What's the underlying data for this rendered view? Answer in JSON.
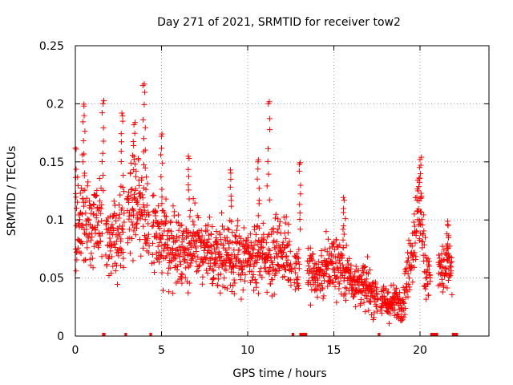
{
  "chart_data": {
    "type": "scatter",
    "title": "Day 271 of 2021, SRMTID for receiver tow2",
    "xlabel": "GPS time / hours",
    "ylabel": "SRMTID / TECUs",
    "xlim": [
      0,
      24
    ],
    "ylim": [
      0,
      0.25
    ],
    "x_ticks": [
      0,
      5,
      10,
      15,
      20
    ],
    "y_ticks": [
      0,
      0.05,
      0.1,
      0.15,
      0.2,
      0.25
    ],
    "x_tick_labels": [
      "0",
      "5",
      "10",
      "15",
      "20"
    ],
    "y_tick_labels": [
      "0",
      "0.05",
      "0.1",
      "0.15",
      "0.2",
      "0.25"
    ],
    "grid": true,
    "marker": "+",
    "series": [
      {
        "name": "SRMTID",
        "color": "#ff0000",
        "trend": [
          {
            "x": 0.0,
            "y": 0.09
          },
          {
            "x": 0.5,
            "y": 0.11
          },
          {
            "x": 1.0,
            "y": 0.1
          },
          {
            "x": 1.5,
            "y": 0.09
          },
          {
            "x": 2.0,
            "y": 0.08
          },
          {
            "x": 2.5,
            "y": 0.09
          },
          {
            "x": 3.0,
            "y": 0.11
          },
          {
            "x": 3.5,
            "y": 0.12
          },
          {
            "x": 4.0,
            "y": 0.11
          },
          {
            "x": 4.5,
            "y": 0.09
          },
          {
            "x": 5.0,
            "y": 0.08
          },
          {
            "x": 6.0,
            "y": 0.075
          },
          {
            "x": 7.0,
            "y": 0.075
          },
          {
            "x": 8.0,
            "y": 0.07
          },
          {
            "x": 9.0,
            "y": 0.07
          },
          {
            "x": 10.0,
            "y": 0.065
          },
          {
            "x": 11.0,
            "y": 0.07
          },
          {
            "x": 12.0,
            "y": 0.075
          },
          {
            "x": 12.8,
            "y": 0.06
          },
          {
            "x": 13.5,
            "y": 0.06
          },
          {
            "x": 14.0,
            "y": 0.05
          },
          {
            "x": 15.0,
            "y": 0.065
          },
          {
            "x": 15.5,
            "y": 0.06
          },
          {
            "x": 16.0,
            "y": 0.05
          },
          {
            "x": 17.0,
            "y": 0.04
          },
          {
            "x": 17.5,
            "y": 0.035
          },
          {
            "x": 18.0,
            "y": 0.028
          },
          {
            "x": 18.5,
            "y": 0.028
          },
          {
            "x": 19.0,
            "y": 0.03
          },
          {
            "x": 19.5,
            "y": 0.07
          },
          {
            "x": 19.8,
            "y": 0.1
          },
          {
            "x": 20.0,
            "y": 0.11
          },
          {
            "x": 20.3,
            "y": 0.06
          },
          {
            "x": 20.8,
            "y": 0.05
          },
          {
            "x": 21.5,
            "y": 0.06
          },
          {
            "x": 22.0,
            "y": 0.055
          }
        ],
        "peaks": [
          {
            "x": 0.0,
            "y": 0.162
          },
          {
            "x": 0.5,
            "y": 0.198
          },
          {
            "x": 1.6,
            "y": 0.2
          },
          {
            "x": 2.7,
            "y": 0.192
          },
          {
            "x": 3.4,
            "y": 0.182
          },
          {
            "x": 4.0,
            "y": 0.217
          },
          {
            "x": 5.0,
            "y": 0.172
          },
          {
            "x": 6.6,
            "y": 0.153
          },
          {
            "x": 9.0,
            "y": 0.143
          },
          {
            "x": 10.6,
            "y": 0.15
          },
          {
            "x": 11.2,
            "y": 0.2
          },
          {
            "x": 13.0,
            "y": 0.148
          },
          {
            "x": 15.6,
            "y": 0.117
          },
          {
            "x": 20.0,
            "y": 0.152
          },
          {
            "x": 21.6,
            "y": 0.096
          }
        ],
        "gaps": [
          {
            "start": 1.55,
            "end": 1.75
          },
          {
            "start": 2.85,
            "end": 3.0
          },
          {
            "start": 4.3,
            "end": 4.45
          },
          {
            "start": 12.55,
            "end": 12.7
          },
          {
            "start": 13.0,
            "end": 13.45
          },
          {
            "start": 17.55,
            "end": 17.7
          },
          {
            "start": 20.6,
            "end": 21.05
          },
          {
            "start": 21.85,
            "end": 22.2
          }
        ],
        "x_range": [
          0.0,
          22.2
        ]
      }
    ]
  }
}
